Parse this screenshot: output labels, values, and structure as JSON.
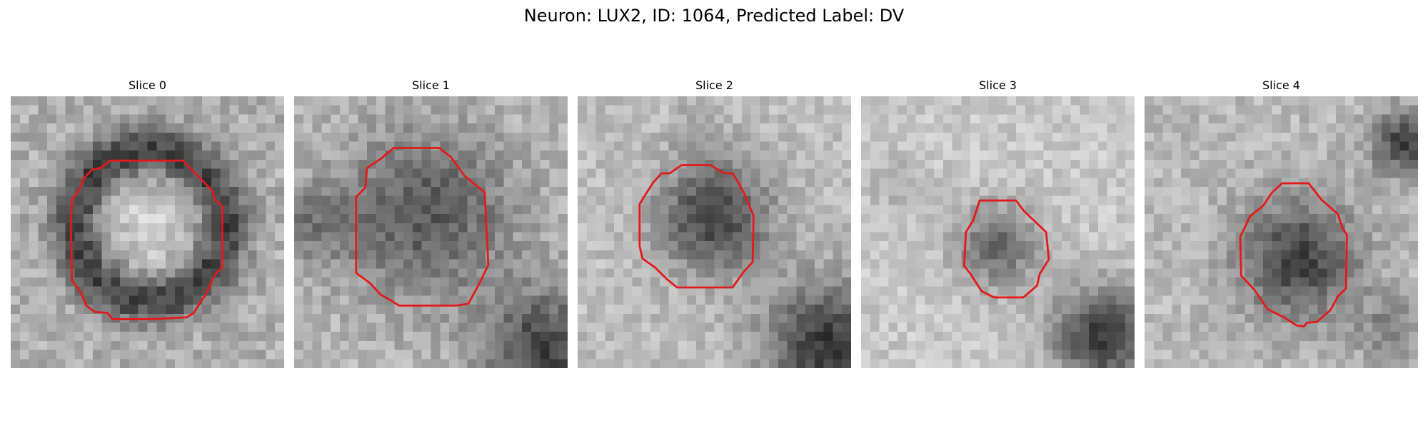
{
  "figure": {
    "title": "Neuron: LUX2, ID: 1064, Predicted Label: DV"
  },
  "panels": [
    {
      "title": "Slice 0"
    },
    {
      "title": "Slice 1"
    },
    {
      "title": "Slice 2"
    },
    {
      "title": "Slice 3"
    },
    {
      "title": "Slice 4"
    }
  ],
  "colors": {
    "contour": "#e31a1c",
    "colormap": "grayscale"
  }
}
